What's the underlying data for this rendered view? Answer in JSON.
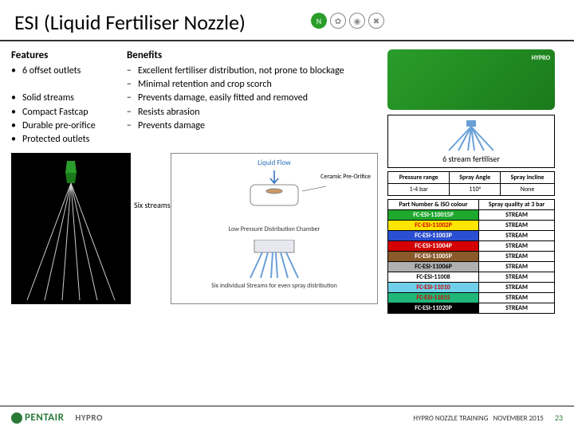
{
  "title": "ESI (Liquid Fertiliser Nozzle)",
  "features_head": "Features",
  "benefits_head": "Benefits",
  "features": [
    "6 offset outlets",
    "Solid streams",
    "Compact Fastcap",
    "Durable pre-orifice",
    "Protected outlets"
  ],
  "benefits": [
    "Excellent fertiliser distribution, not prone to blockage",
    "Minimal retention and crop scorch",
    "Prevents damage, easily fitted and removed",
    "Resists abrasion",
    "Prevents damage"
  ],
  "six_streams_label": "Six streams",
  "diagram": {
    "liquid_flow": "Liquid Flow",
    "pre_orifice": "Ceramic Pre-Orifice",
    "chamber": "Low Pressure Distribution Chamber",
    "bottom": "Six individual Streams for even spray distribution"
  },
  "hypro_badge": "HYPRO",
  "pattern_label": "6 stream fertiliser",
  "props": {
    "headers": [
      "Pressure range",
      "Spray Angle",
      "Spray incline"
    ],
    "row": [
      "1-4 bar",
      "110°",
      "None"
    ]
  },
  "parts": {
    "head1": "Part Number & ISO colour",
    "head2": "Spray quality at 3 bar",
    "rows": [
      {
        "pn": "FC-ESI-110015P",
        "q": "STREAM",
        "bg": "#1fa82e",
        "fg": "#ffffff"
      },
      {
        "pn": "FC-ESI-11002P",
        "q": "STREAM",
        "bg": "#ffe600",
        "fg": "#d40000"
      },
      {
        "pn": "FC-ESI-11003P",
        "q": "STREAM",
        "bg": "#2a4fd0",
        "fg": "#ffffff"
      },
      {
        "pn": "FC-ESI-11004P",
        "q": "STREAM",
        "bg": "#d40000",
        "fg": "#ffffff"
      },
      {
        "pn": "FC-ESI-11005P",
        "q": "STREAM",
        "bg": "#8a5a2a",
        "fg": "#ffffff"
      },
      {
        "pn": "FC-ESI-11006P",
        "q": "STREAM",
        "bg": "#b0b0b0",
        "fg": "#000000"
      },
      {
        "pn": "FC-ESI-11008",
        "q": "STREAM",
        "bg": "#ffffff",
        "fg": "#000000"
      },
      {
        "pn": "FC-ESI-11010",
        "q": "STREAM",
        "bg": "#6fcfe8",
        "fg": "#d40000"
      },
      {
        "pn": "FC-ESI-11015",
        "q": "STREAM",
        "bg": "#1fb87a",
        "fg": "#d40000"
      },
      {
        "pn": "FC-ESI-11020P",
        "q": "STREAM",
        "bg": "#000000",
        "fg": "#ffffff"
      }
    ]
  },
  "footer": {
    "pentair": "PENTAIR",
    "hypro": "HYPRO",
    "training": "HYPRO NOZZLE TRAINING",
    "date": "NOVEMBER 2015",
    "page": "23"
  }
}
